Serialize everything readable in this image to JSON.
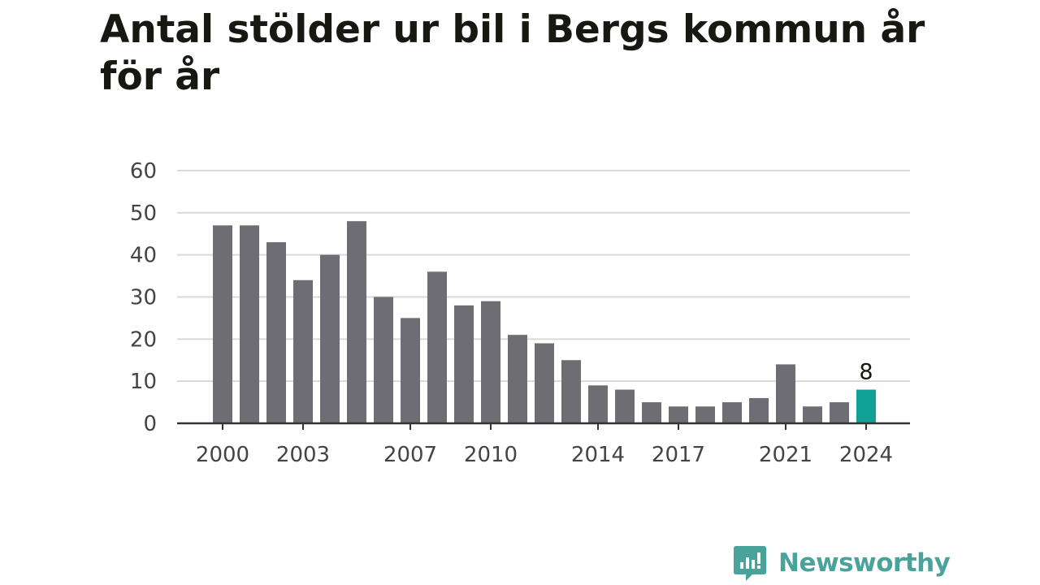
{
  "title": "Antal stölder ur bil i Bergs kommun år för år",
  "brand": {
    "name": "Newsworthy",
    "color": "#4aa39a"
  },
  "colors": {
    "bar": "#6e6d73",
    "highlight": "#10a096",
    "grid": "#d9d9d9",
    "axis": "#333333"
  },
  "chart_data": {
    "type": "bar",
    "title": "Antal stölder ur bil i Bergs kommun år för år",
    "xlabel": "",
    "ylabel": "",
    "categories": [
      2000,
      2001,
      2002,
      2003,
      2004,
      2005,
      2006,
      2007,
      2008,
      2009,
      2010,
      2011,
      2012,
      2013,
      2014,
      2015,
      2016,
      2017,
      2018,
      2019,
      2020,
      2021,
      2022,
      2023,
      2024
    ],
    "values": [
      47,
      47,
      43,
      34,
      40,
      48,
      30,
      25,
      36,
      28,
      29,
      21,
      19,
      15,
      9,
      8,
      5,
      4,
      4,
      5,
      6,
      14,
      4,
      5,
      8
    ],
    "x_tick_labels": [
      "2000",
      "2003",
      "2007",
      "2010",
      "2014",
      "2017",
      "2021",
      "2024"
    ],
    "yticks": [
      0,
      10,
      20,
      30,
      40,
      50,
      60
    ],
    "ylim": [
      0,
      60
    ],
    "highlight": {
      "category": 2024,
      "label": "8"
    },
    "grid": true,
    "legend": "none"
  }
}
